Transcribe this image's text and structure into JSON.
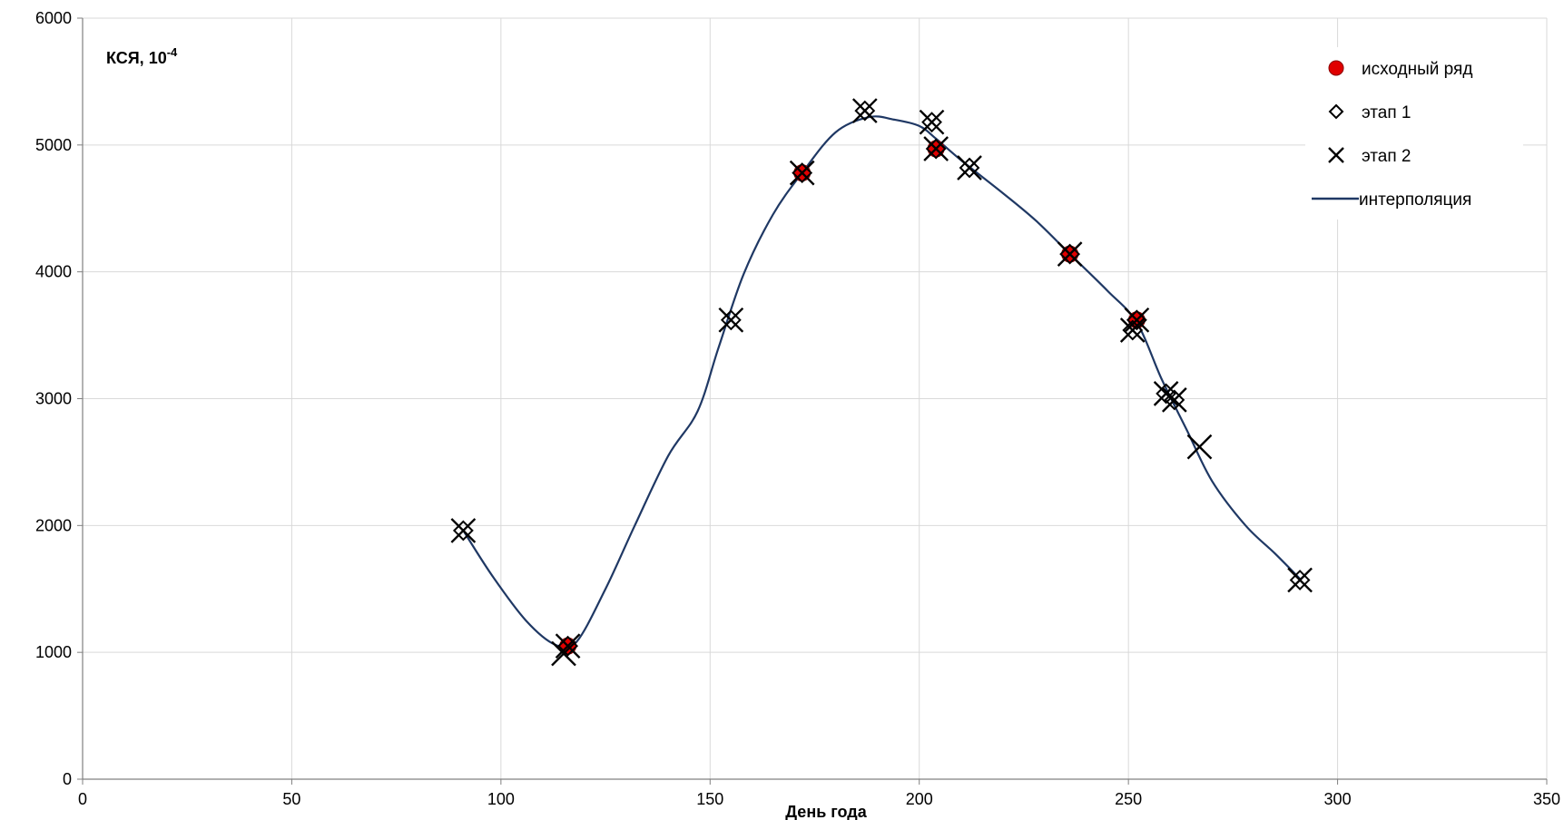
{
  "chart_data": {
    "type": "scatter",
    "title": "",
    "ylabel": "КСЯ, 10",
    "ylabel_sup": "-4",
    "xlabel": "День года",
    "xlim": [
      0,
      350
    ],
    "ylim": [
      0,
      6000
    ],
    "x_ticks": [
      "0",
      "50",
      "100",
      "150",
      "200",
      "250",
      "300",
      "350"
    ],
    "y_ticks": [
      "0",
      "1000",
      "2000",
      "3000",
      "4000",
      "5000",
      "6000"
    ],
    "grid": true,
    "legend_position": "top-right",
    "series": [
      {
        "name": "исходный ряд",
        "marker": "circle",
        "color": "#e00000",
        "points": [
          [
            116,
            1050
          ],
          [
            172,
            4780
          ],
          [
            204,
            4970
          ],
          [
            236,
            4140
          ],
          [
            252,
            3620
          ]
        ]
      },
      {
        "name": "этап 1",
        "marker": "diamond",
        "color": "#000000",
        "points": [
          [
            91,
            1960
          ],
          [
            116,
            1050
          ],
          [
            155,
            3620
          ],
          [
            172,
            4780
          ],
          [
            187,
            5270
          ],
          [
            203,
            5180
          ],
          [
            204,
            4970
          ],
          [
            212,
            4820
          ],
          [
            236,
            4140
          ],
          [
            251,
            3540
          ],
          [
            252,
            3620
          ],
          [
            259,
            3040
          ],
          [
            261,
            2990
          ],
          [
            291,
            1570
          ]
        ]
      },
      {
        "name": "этап 2",
        "marker": "x",
        "color": "#000000",
        "points": [
          [
            91,
            1960
          ],
          [
            115,
            990
          ],
          [
            116,
            1050
          ],
          [
            155,
            3620
          ],
          [
            172,
            4780
          ],
          [
            187,
            5270
          ],
          [
            203,
            5180
          ],
          [
            204,
            4970
          ],
          [
            212,
            4820
          ],
          [
            236,
            4140
          ],
          [
            251,
            3540
          ],
          [
            252,
            3620
          ],
          [
            259,
            3040
          ],
          [
            261,
            2990
          ],
          [
            267,
            2620
          ],
          [
            291,
            1570
          ]
        ]
      },
      {
        "name": "интерполяция",
        "type": "line",
        "color": "#1f3864",
        "points": [
          [
            91,
            1960
          ],
          [
            98,
            1600
          ],
          [
            106,
            1250
          ],
          [
            113,
            1060
          ],
          [
            118,
            1080
          ],
          [
            125,
            1500
          ],
          [
            132,
            2000
          ],
          [
            140,
            2550
          ],
          [
            147,
            2900
          ],
          [
            152,
            3400
          ],
          [
            158,
            3980
          ],
          [
            165,
            4450
          ],
          [
            172,
            4780
          ],
          [
            180,
            5100
          ],
          [
            188,
            5220
          ],
          [
            194,
            5200
          ],
          [
            200,
            5150
          ],
          [
            204,
            5050
          ],
          [
            210,
            4880
          ],
          [
            220,
            4620
          ],
          [
            228,
            4400
          ],
          [
            236,
            4140
          ],
          [
            245,
            3850
          ],
          [
            252,
            3600
          ],
          [
            258,
            3150
          ],
          [
            264,
            2750
          ],
          [
            270,
            2350
          ],
          [
            278,
            2000
          ],
          [
            285,
            1780
          ],
          [
            291,
            1580
          ]
        ]
      }
    ]
  }
}
